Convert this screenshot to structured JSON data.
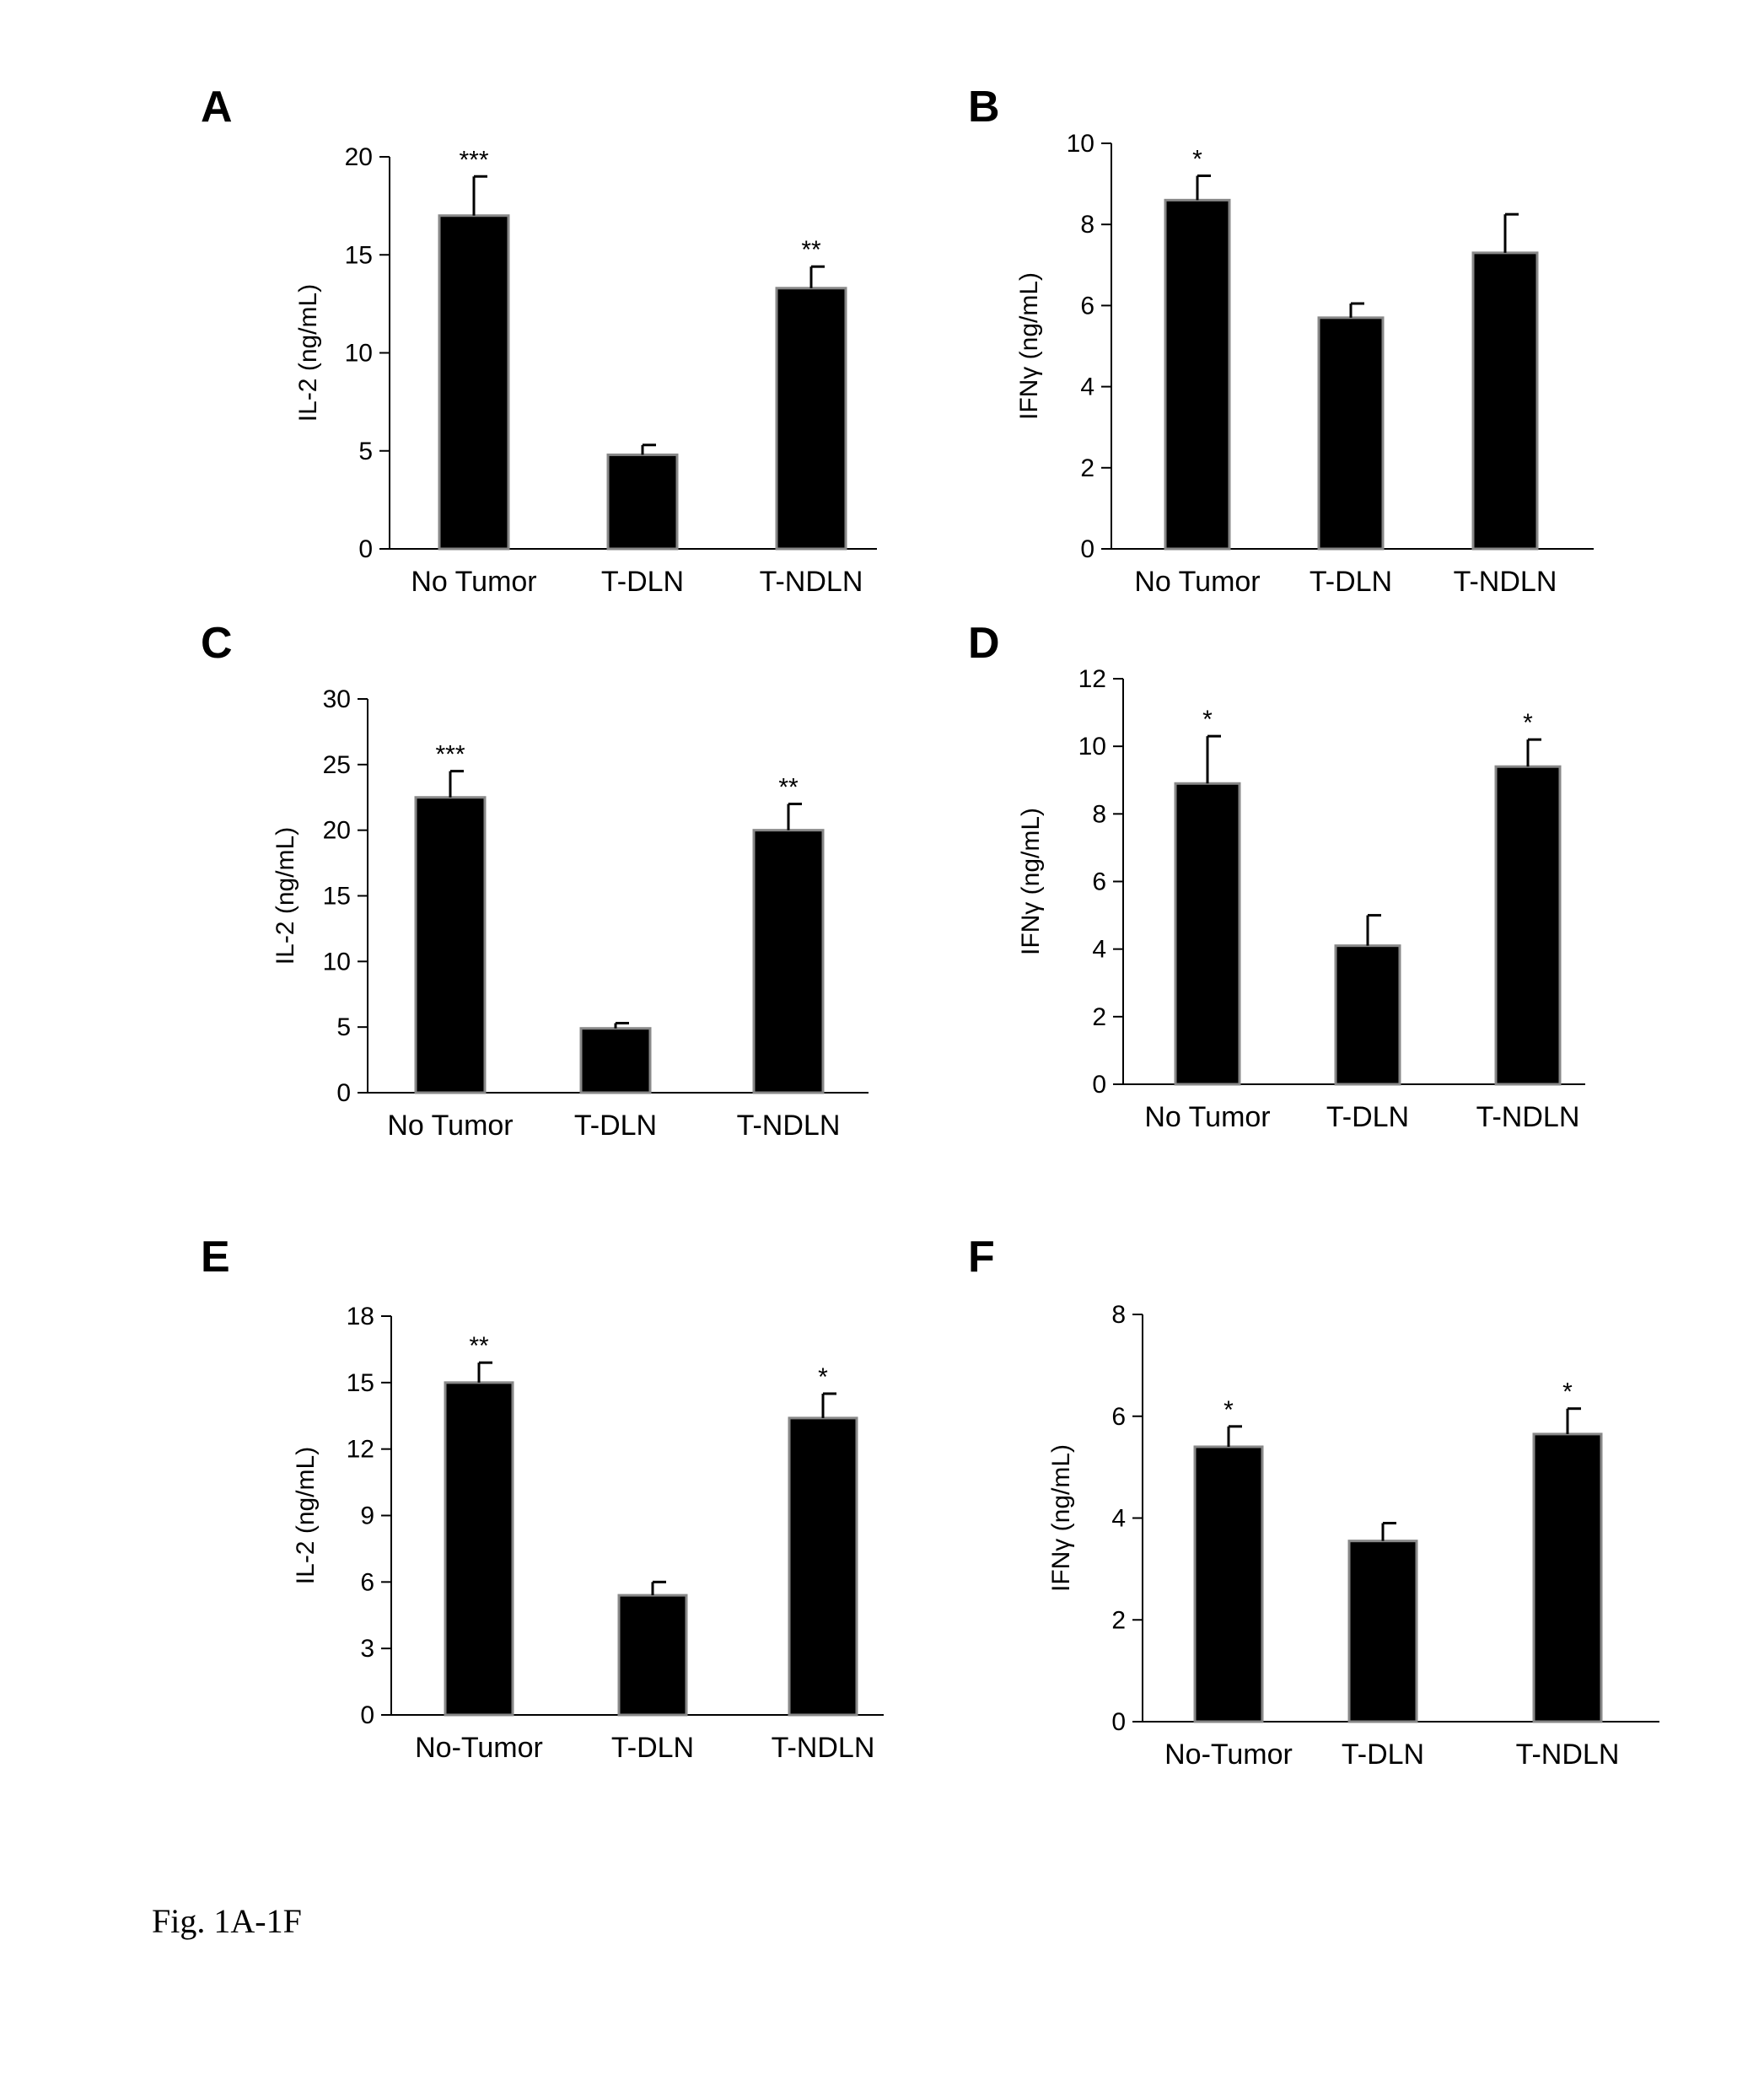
{
  "caption": "Fig. 1A-1F",
  "chart_data": [
    {
      "type": "bar",
      "panel": "A",
      "categories": [
        "No Tumor",
        "T-DLN",
        "T-NDLN"
      ],
      "ylabel": "IL-2 (ng/mL)",
      "ylim": [
        0,
        20
      ],
      "yticks": [
        0,
        5,
        10,
        15,
        20
      ],
      "values": [
        17.0,
        4.8,
        13.3
      ],
      "errors": [
        2.0,
        0.5,
        1.1
      ],
      "significance": [
        "***",
        "",
        "**"
      ]
    },
    {
      "type": "bar",
      "panel": "B",
      "categories": [
        "No Tumor",
        "T-DLN",
        "T-NDLN"
      ],
      "ylabel": "IFNγ (ng/mL)",
      "ylim": [
        0,
        10
      ],
      "yticks": [
        0,
        2,
        4,
        6,
        8,
        10
      ],
      "values": [
        8.6,
        5.7,
        7.3
      ],
      "errors": [
        0.6,
        0.35,
        0.95
      ],
      "significance": [
        "*",
        "",
        ""
      ]
    },
    {
      "type": "bar",
      "panel": "C",
      "categories": [
        "No Tumor",
        "T-DLN",
        "T-NDLN"
      ],
      "ylabel": "IL-2 (ng/mL)",
      "ylim": [
        0,
        30
      ],
      "yticks": [
        0,
        5,
        10,
        15,
        20,
        25,
        30
      ],
      "values": [
        22.5,
        4.9,
        20.0
      ],
      "errors": [
        2.0,
        0.4,
        2.0
      ],
      "significance": [
        "***",
        "",
        "**"
      ]
    },
    {
      "type": "bar",
      "panel": "D",
      "categories": [
        "No Tumor",
        "T-DLN",
        "T-NDLN"
      ],
      "ylabel": "IFNγ (ng/mL)",
      "ylim": [
        0,
        12
      ],
      "yticks": [
        0,
        2,
        4,
        6,
        8,
        10,
        12
      ],
      "values": [
        8.9,
        4.1,
        9.4
      ],
      "errors": [
        1.4,
        0.9,
        0.8
      ],
      "significance": [
        "*",
        "",
        "*"
      ]
    },
    {
      "type": "bar",
      "panel": "E",
      "categories": [
        "No-Tumor",
        "T-DLN",
        "T-NDLN"
      ],
      "ylabel": "IL-2 (ng/mL)",
      "ylim": [
        0,
        18
      ],
      "yticks": [
        0,
        3,
        6,
        9,
        12,
        15,
        18
      ],
      "values": [
        15.0,
        5.4,
        13.4
      ],
      "errors": [
        0.9,
        0.6,
        1.1
      ],
      "significance": [
        "**",
        "",
        "*"
      ]
    },
    {
      "type": "bar",
      "panel": "F",
      "categories": [
        "No-Tumor",
        "T-DLN",
        "T-NDLN"
      ],
      "ylabel": "IFNγ (ng/mL)",
      "ylim": [
        0,
        8
      ],
      "yticks": [
        0,
        2,
        4,
        6,
        8
      ],
      "values": [
        5.4,
        3.55,
        5.65
      ],
      "errors": [
        0.4,
        0.35,
        0.5
      ],
      "significance": [
        "*",
        "",
        "*"
      ]
    }
  ]
}
